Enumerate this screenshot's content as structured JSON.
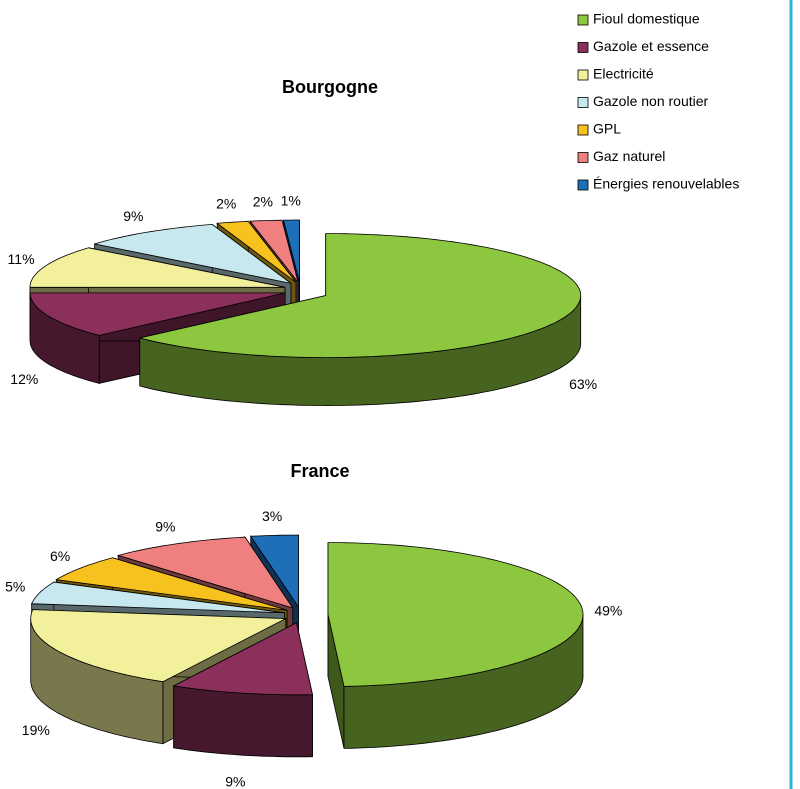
{
  "chart_data": [
    {
      "type": "pie",
      "title": "Bourgogne",
      "categories": [
        "Fioul domestique",
        "Gazole et essence",
        "Electricité",
        "Gazole non routier",
        "GPL",
        "Gaz naturel",
        "Énergies renouvelables"
      ],
      "values": [
        63,
        12,
        11,
        9,
        2,
        2,
        1
      ],
      "value_labels": [
        "63%",
        "12%",
        "11%",
        "9%",
        "2%",
        "2%",
        "1%"
      ],
      "colors": [
        "#8dc63f",
        "#8b2f5b",
        "#f2f09a",
        "#c6e8ee",
        "#f7c21d",
        "#f08080",
        "#1f6fb8"
      ]
    },
    {
      "type": "pie",
      "title": "France",
      "categories": [
        "Fioul domestique",
        "Gazole et essence",
        "Electricité",
        "Gazole non routier",
        "GPL",
        "Gaz naturel",
        "Énergies renouvelables"
      ],
      "values": [
        49,
        9,
        19,
        5,
        6,
        9,
        3
      ],
      "value_labels": [
        "49%",
        "9%",
        "19%",
        "5%",
        "6%",
        "9%",
        "3%"
      ],
      "colors": [
        "#8dc63f",
        "#8b2f5b",
        "#f2f09a",
        "#c6e8ee",
        "#f7c21d",
        "#f08080",
        "#1f6fb8"
      ]
    }
  ]
}
